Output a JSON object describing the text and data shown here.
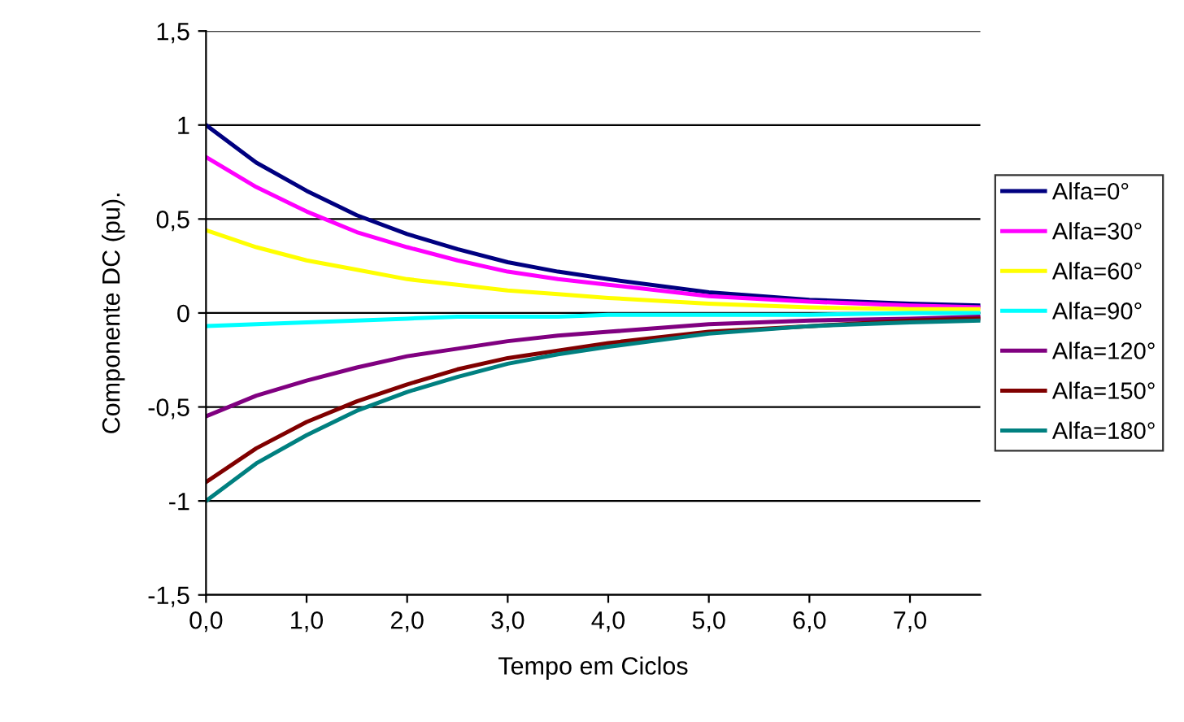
{
  "chart_data": {
    "type": "line",
    "xlabel": "Tempo em Ciclos",
    "ylabel": "Componente DC (pu).",
    "x": [
      0,
      0.5,
      1,
      1.5,
      2,
      2.5,
      3,
      3.5,
      4,
      5,
      6,
      7,
      7.7
    ],
    "series": [
      {
        "name": "Alfa=0°",
        "color": "#000080",
        "values": [
          1,
          0.8,
          0.65,
          0.52,
          0.42,
          0.34,
          0.27,
          0.22,
          0.18,
          0.11,
          0.07,
          0.05,
          0.04
        ]
      },
      {
        "name": "Alfa=30°",
        "color": "#ff00ff",
        "values": [
          0.83,
          0.67,
          0.54,
          0.43,
          0.35,
          0.28,
          0.22,
          0.18,
          0.15,
          0.09,
          0.06,
          0.04,
          0.03
        ]
      },
      {
        "name": "Alfa=60°",
        "color": "#ffff00",
        "values": [
          0.44,
          0.35,
          0.28,
          0.23,
          0.18,
          0.15,
          0.12,
          0.1,
          0.08,
          0.05,
          0.03,
          0.02,
          0.02
        ]
      },
      {
        "name": "Alfa=90°",
        "color": "#00ffff",
        "values": [
          -0.07,
          -0.06,
          -0.05,
          -0.04,
          -0.03,
          -0.02,
          -0.02,
          -0.02,
          -0.01,
          -0.01,
          -0.01,
          0,
          0
        ]
      },
      {
        "name": "Alfa=120°",
        "color": "#800080",
        "values": [
          -0.55,
          -0.44,
          -0.36,
          -0.29,
          -0.23,
          -0.19,
          -0.15,
          -0.12,
          -0.1,
          -0.06,
          -0.04,
          -0.03,
          -0.02
        ]
      },
      {
        "name": "Alfa=150°",
        "color": "#800000",
        "values": [
          -0.9,
          -0.72,
          -0.58,
          -0.47,
          -0.38,
          -0.3,
          -0.24,
          -0.2,
          -0.16,
          -0.1,
          -0.07,
          -0.04,
          -0.03
        ]
      },
      {
        "name": "Alfa=180°",
        "color": "#008080",
        "values": [
          -1,
          -0.8,
          -0.65,
          -0.52,
          -0.42,
          -0.34,
          -0.27,
          -0.22,
          -0.18,
          -0.11,
          -0.07,
          -0.05,
          -0.04
        ]
      }
    ],
    "xlim": [
      0,
      7.7
    ],
    "xticks": [
      {
        "value": 0,
        "label": "0,0"
      },
      {
        "value": 1,
        "label": "1,0"
      },
      {
        "value": 2,
        "label": "2,0"
      },
      {
        "value": 3,
        "label": "3,0"
      },
      {
        "value": 4,
        "label": "4,0"
      },
      {
        "value": 5,
        "label": "5,0"
      },
      {
        "value": 6,
        "label": "6,0"
      },
      {
        "value": 7,
        "label": "7,0"
      }
    ],
    "ylim": [
      -1.5,
      1.5
    ],
    "yticks": [
      {
        "value": -1.5,
        "label": "-1,5"
      },
      -1,
      {
        "value": -0.5,
        "label": "-0,5"
      },
      0,
      {
        "value": 0.5,
        "label": "0,5"
      },
      1,
      {
        "value": 1.5,
        "label": "1,5"
      }
    ],
    "grid": "y",
    "legend": "right",
    "marker": "none",
    "line_style": "solid"
  }
}
